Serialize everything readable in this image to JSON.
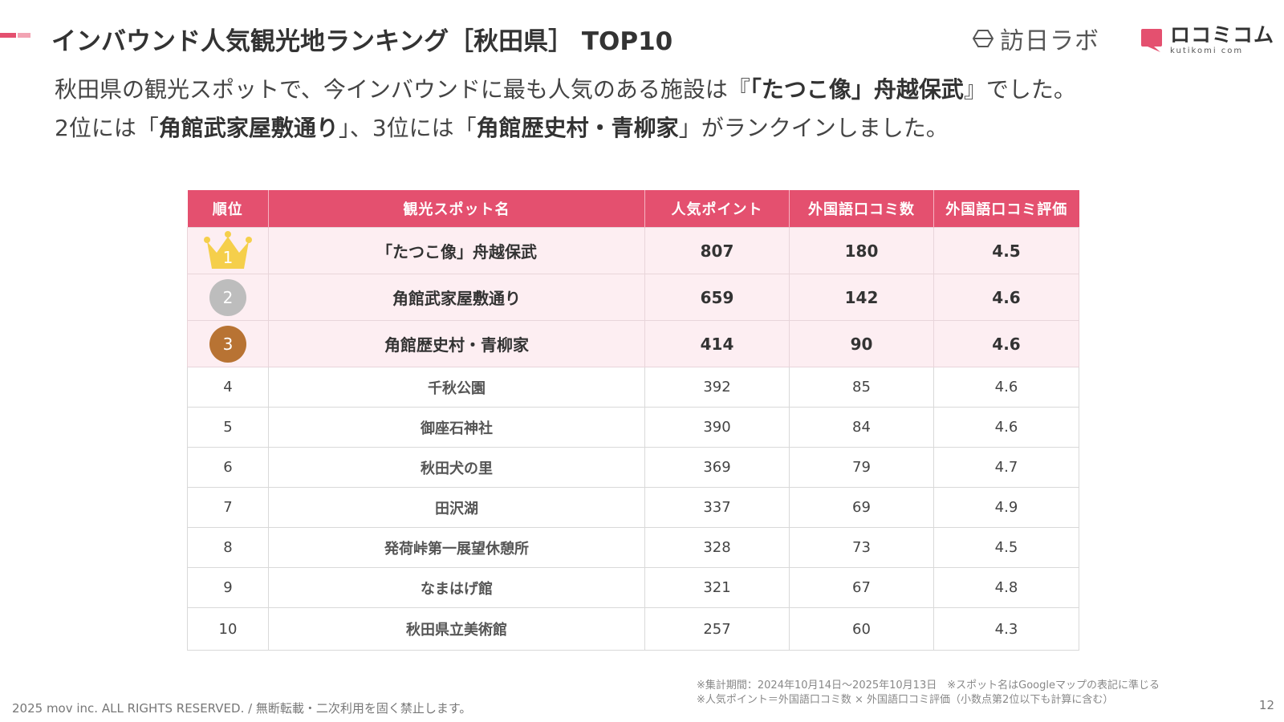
{
  "header": {
    "title": "インバウンド人気観光地ランキング［秋田県］ TOP10",
    "logo_houjin": "訪日ラボ",
    "logo_kuchikomi": "ロコミコム",
    "logo_kuchikomi_sub": "kutikomi com"
  },
  "lead": {
    "l1_a": "秋田県の観光スポットで、今インバウンドに最も人気のある施設は『",
    "l1_b": "「たつこ像」舟越保武",
    "l1_c": "』でした。",
    "l2_a": "2位には「",
    "l2_b": "角館武家屋敷通り",
    "l2_c": "」、3位には「",
    "l2_d": "角館歴史村・青柳家",
    "l2_e": "」がランクインしました。"
  },
  "table": {
    "headers": [
      "順位",
      "観光スポット名",
      "人気ポイント",
      "外国語口コミ数",
      "外国語口コミ評価"
    ],
    "rows": [
      {
        "rank": "1",
        "name": "「たつこ像」舟越保武",
        "points": "807",
        "reviews": "180",
        "rating": "4.5"
      },
      {
        "rank": "2",
        "name": "角館武家屋敷通り",
        "points": "659",
        "reviews": "142",
        "rating": "4.6"
      },
      {
        "rank": "3",
        "name": "角館歴史村・青柳家",
        "points": "414",
        "reviews": "90",
        "rating": "4.6"
      },
      {
        "rank": "4",
        "name": "千秋公園",
        "points": "392",
        "reviews": "85",
        "rating": "4.6"
      },
      {
        "rank": "5",
        "name": "御座石神社",
        "points": "390",
        "reviews": "84",
        "rating": "4.6"
      },
      {
        "rank": "6",
        "name": "秋田犬の里",
        "points": "369",
        "reviews": "79",
        "rating": "4.7"
      },
      {
        "rank": "7",
        "name": "田沢湖",
        "points": "337",
        "reviews": "69",
        "rating": "4.9"
      },
      {
        "rank": "8",
        "name": "発荷峠第一展望休憩所",
        "points": "328",
        "reviews": "73",
        "rating": "4.5"
      },
      {
        "rank": "9",
        "name": "なまはげ館",
        "points": "321",
        "reviews": "67",
        "rating": "4.8"
      },
      {
        "rank": "10",
        "name": "秋田県立美術館",
        "points": "257",
        "reviews": "60",
        "rating": "4.3"
      }
    ]
  },
  "notes": {
    "line1": "※集計期間：2024年10月14日〜2025年10月13日　※スポット名はGoogleマップの表記に準じる",
    "line2": "※人気ポイント＝外国語口コミ数 × 外国語口コミ評価（小数点第2位以下も計算に含む）"
  },
  "footer": {
    "copyright": "2025 mov inc. ALL RIGHTS RESERVED. / 無断転載・二次利用を固く禁止します。",
    "page": "12"
  },
  "colors": {
    "accent": "#e4506f",
    "row_highlight": "#fdeef2",
    "gold": "#f5cf4b",
    "silver": "#bdbdbd",
    "bronze": "#b87333"
  },
  "icons": {
    "rank1": "crown-icon",
    "rank2": "silver-badge",
    "rank3": "bronze-badge"
  }
}
